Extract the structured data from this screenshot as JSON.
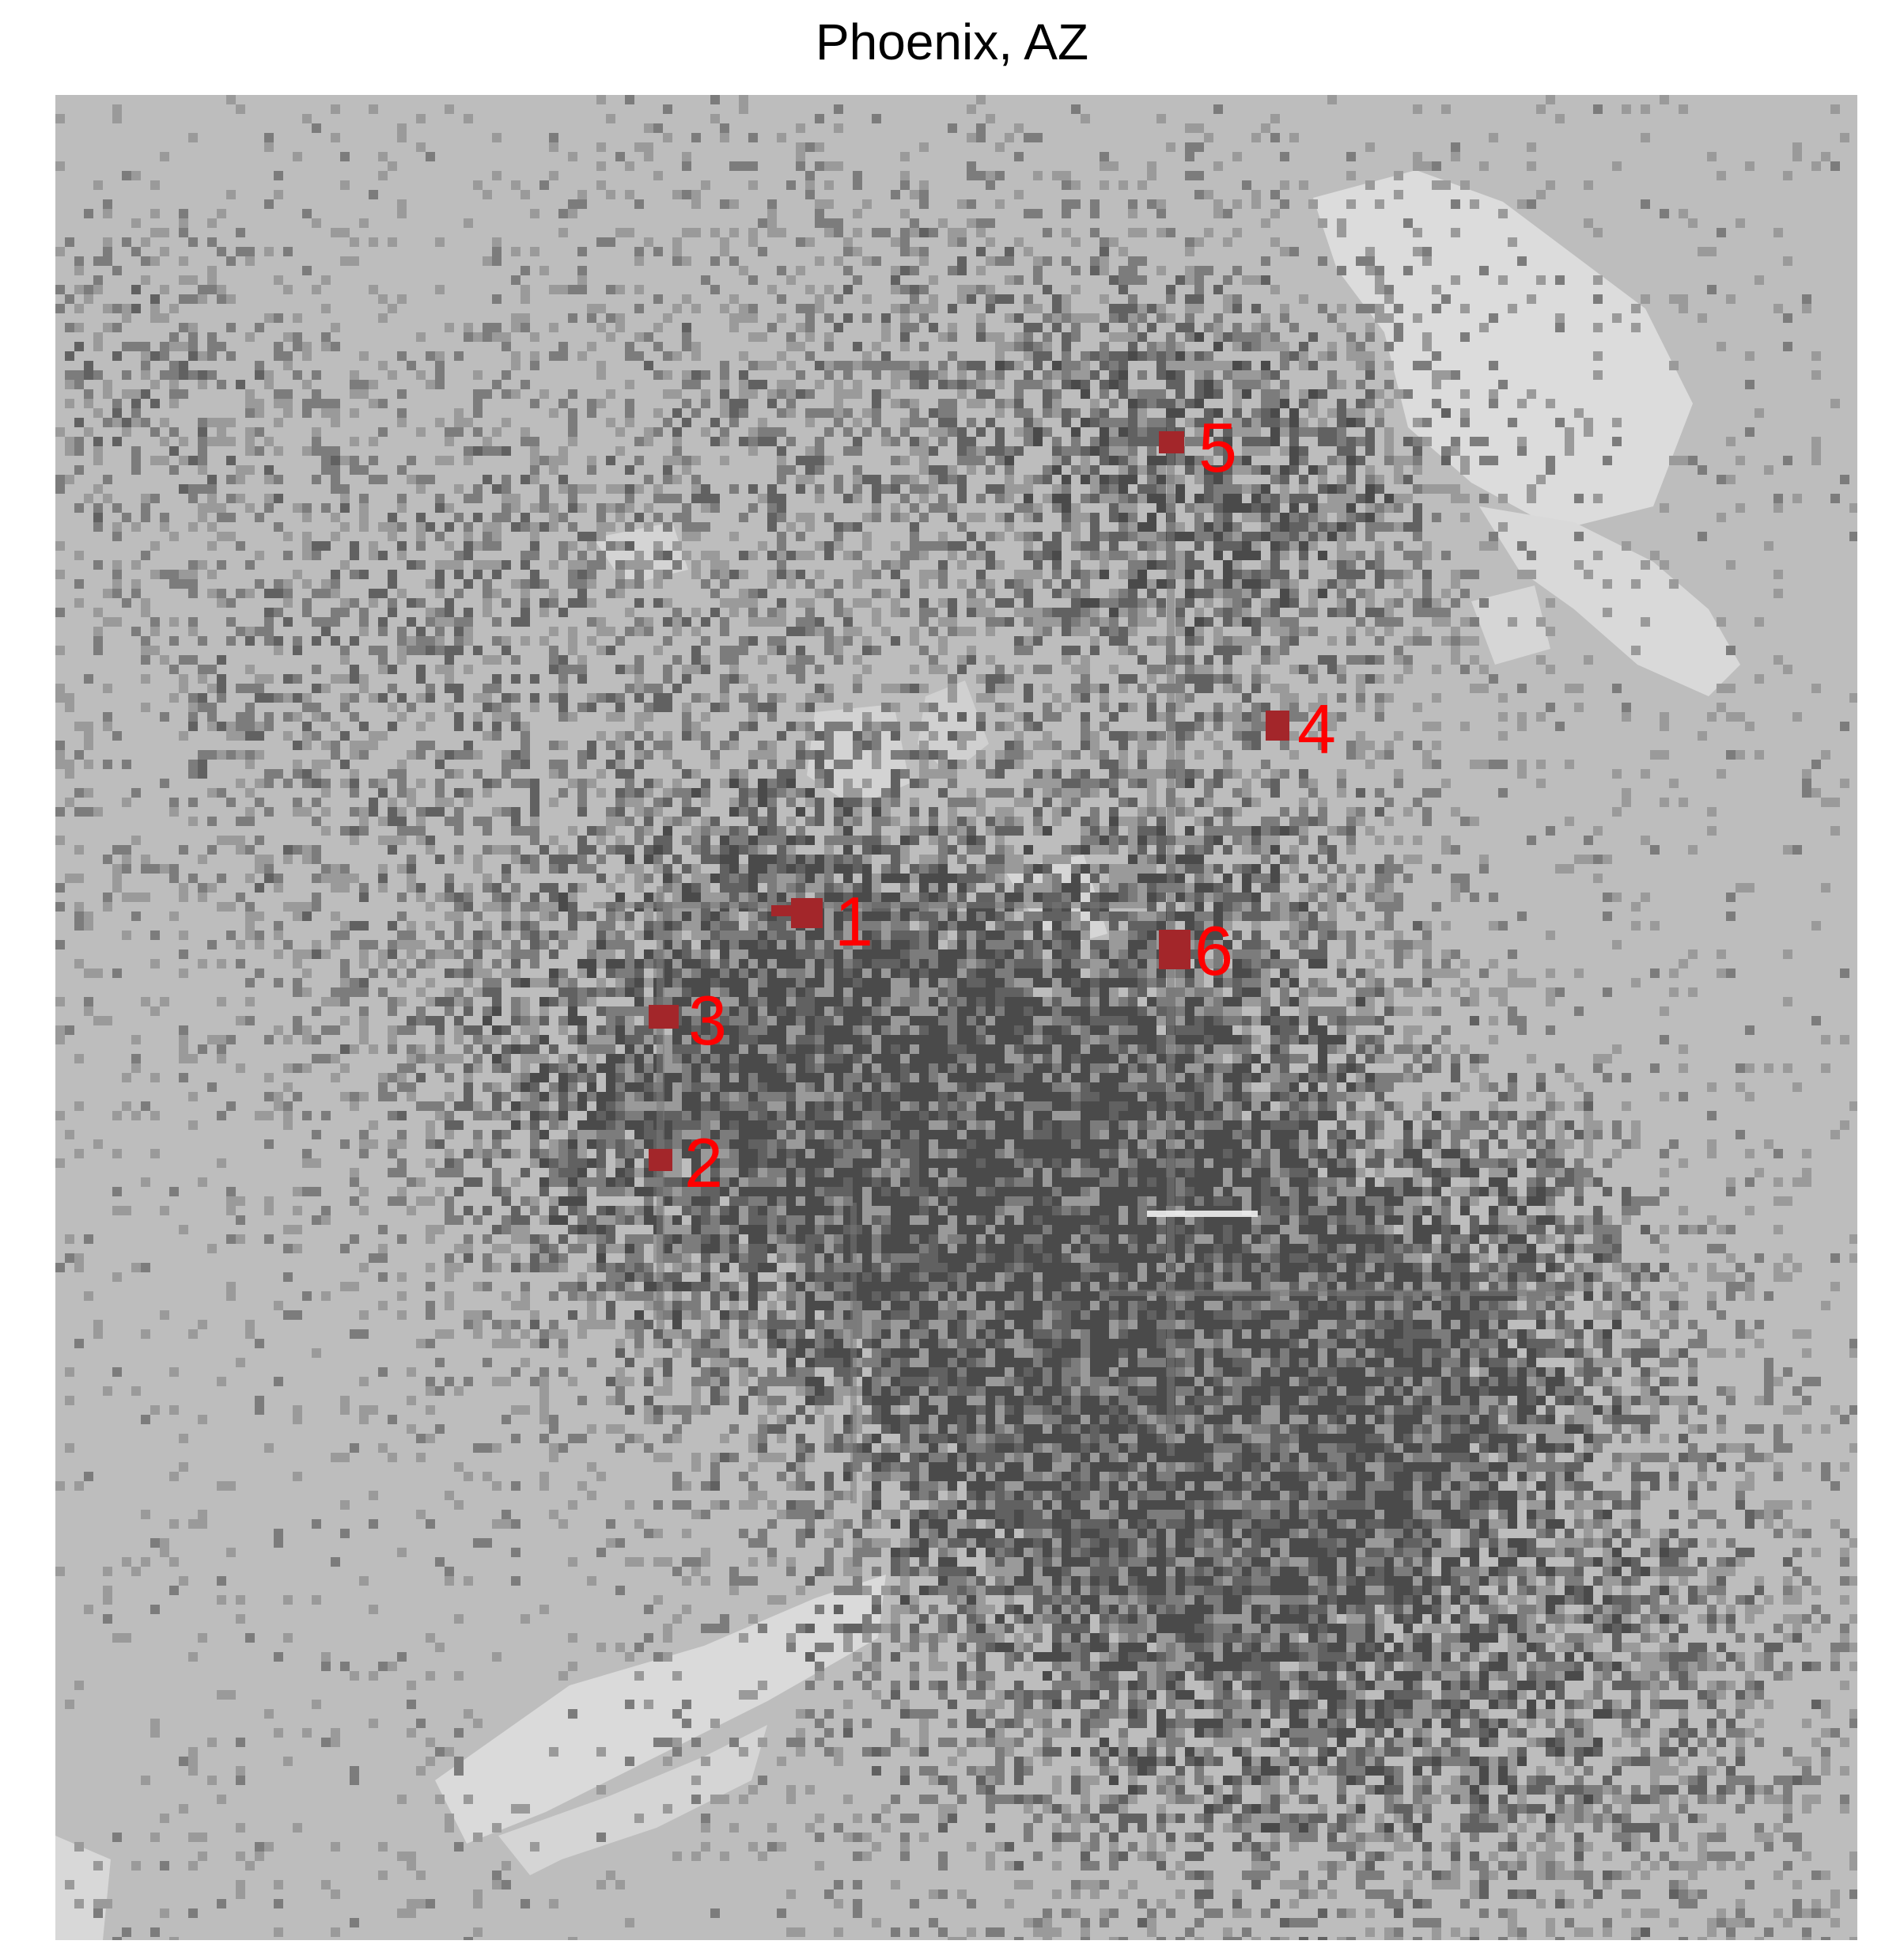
{
  "map": {
    "title": "Phoenix, AZ",
    "colors": {
      "background": "#bdbdbd",
      "light": "#dedede",
      "medium": "#8a8a8a",
      "dark": "#555555",
      "darker": "#3a3a3a",
      "marker": "#a3262a",
      "label": "#ff0000"
    },
    "markers": [
      {
        "label": "1"
      },
      {
        "label": "2"
      },
      {
        "label": "3"
      },
      {
        "label": "4"
      },
      {
        "label": "5"
      },
      {
        "label": "6"
      }
    ]
  }
}
